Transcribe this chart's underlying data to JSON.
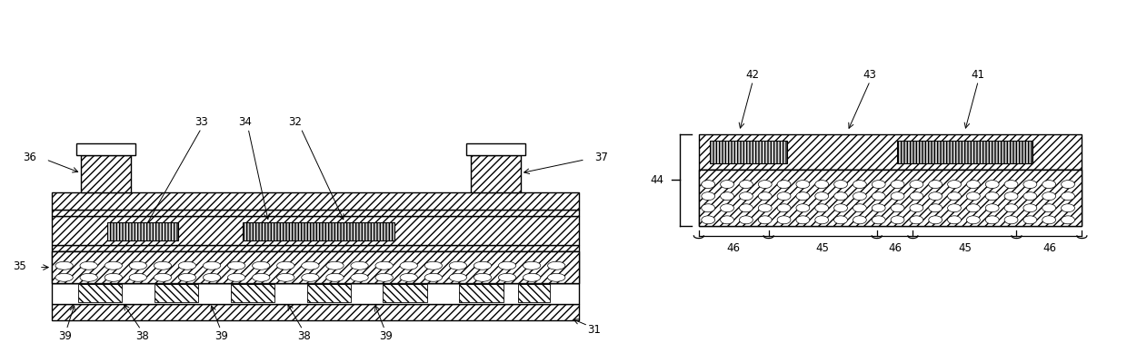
{
  "bg_color": "#ffffff",
  "line_color": "#000000",
  "fig_width": 12.4,
  "fig_height": 3.89,
  "dpi": 100
}
